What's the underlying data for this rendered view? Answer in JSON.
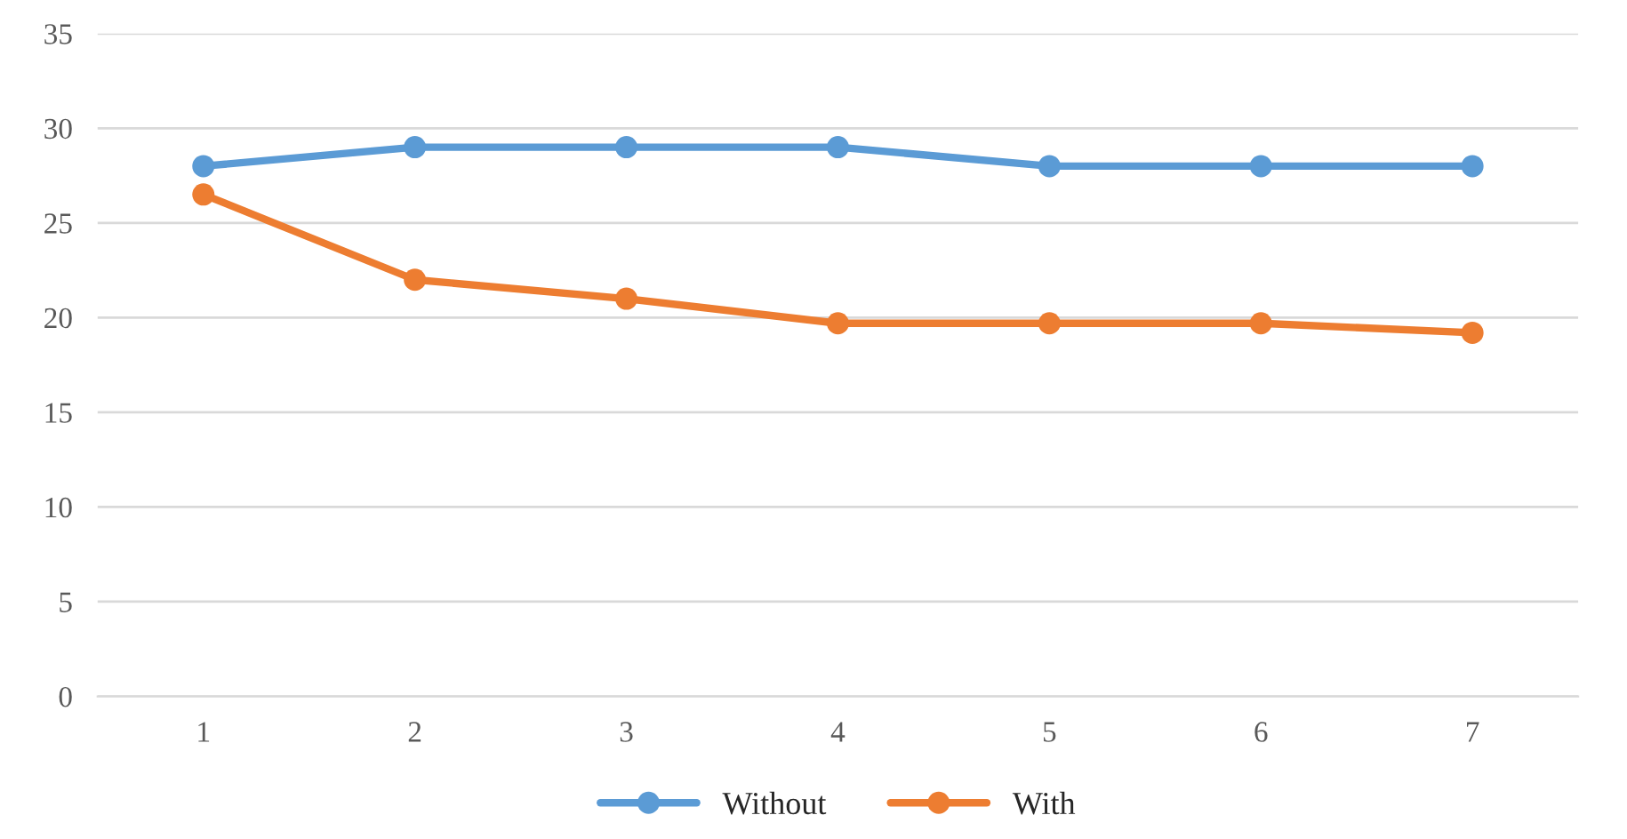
{
  "chart_data": {
    "type": "line",
    "categories": [
      "1",
      "2",
      "3",
      "4",
      "5",
      "6",
      "7"
    ],
    "series": [
      {
        "name": "Without",
        "color": "#5b9bd5",
        "values": [
          28,
          29,
          29,
          29,
          28,
          28,
          28
        ]
      },
      {
        "name": "With",
        "color": "#ed7d31",
        "values": [
          26.5,
          22,
          21,
          19.7,
          19.7,
          19.7,
          19.2
        ]
      }
    ],
    "ylim": [
      0,
      35
    ],
    "yticks": [
      0,
      5,
      10,
      15,
      20,
      25,
      30,
      35
    ],
    "grid": "y",
    "legend": "bottom",
    "marker": "circle",
    "line_style": "solid"
  }
}
